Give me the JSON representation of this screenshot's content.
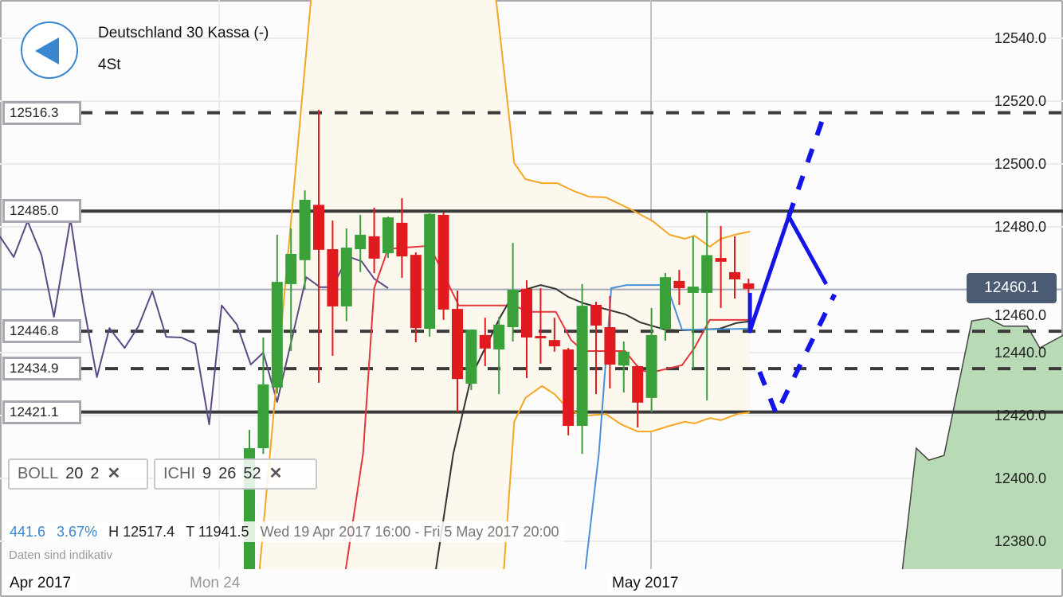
{
  "header": {
    "title": "Deutschland 30 Kassa (-)",
    "timeframe": "4St",
    "back_icon": "back-arrow-icon"
  },
  "levels": [
    {
      "label": "12516.3",
      "price": 12516.3,
      "style": "dashed"
    },
    {
      "label": "12485.0",
      "price": 12485.0,
      "style": "solid"
    },
    {
      "label": "12446.8",
      "price": 12446.8,
      "style": "dashed"
    },
    {
      "label": "12434.9",
      "price": 12434.9,
      "style": "dashed"
    },
    {
      "label": "12421.1",
      "price": 12421.1,
      "style": "solid"
    }
  ],
  "price_axis": {
    "labels": [
      "12540.0",
      "12520.0",
      "12500.0",
      "12480.0",
      "12460.0",
      "12440.0",
      "12420.0",
      "12400.0",
      "12380.0"
    ],
    "current": "12460.1"
  },
  "indicators": [
    {
      "name": "BOLL",
      "params": [
        "20",
        "2"
      ]
    },
    {
      "name": "ICHI",
      "params": [
        "9",
        "26",
        "52"
      ]
    }
  ],
  "info": {
    "change": "441.6",
    "change_pct": "3.67%",
    "high": "H 12517.4",
    "low": "T 11941.5",
    "range": "Wed 19 Apr 2017 16:00 - Fri 5 May 2017 20:00",
    "note": "Daten sind indikativ"
  },
  "x_axis": {
    "labels": [
      "Apr 2017",
      "Mon 24",
      "May 2017"
    ]
  },
  "colors": {
    "up": "#3aa03a",
    "down": "#e01a1f",
    "bollinger": "#f5a623",
    "band_fill": "#fdf8ee",
    "tenkan": "#e3363c",
    "kijun": "#333333",
    "blue_line": "#4a90d9",
    "lagging": "#5c4a85",
    "cloud": "#b8dab4",
    "drawing": "#1414e6",
    "accent": "#3a87d0",
    "badge": "#4b5b74"
  },
  "chart_data": {
    "type": "candlestick",
    "ylim": [
      12362,
      12552
    ],
    "candles_ohlc": [
      [
        12362,
        12415.4,
        12362,
        12409.6
      ],
      [
        12409.6,
        12444.8,
        12407.8,
        12429.9
      ],
      [
        12428.9,
        12477.5,
        12427,
        12462.5
      ],
      [
        12461.8,
        12479.5,
        12440.5,
        12471.4
      ],
      [
        12469.4,
        12491.6,
        12460,
        12488.6
      ],
      [
        12487,
        12517.2,
        12430.4,
        12472.7
      ],
      [
        12472.9,
        12482,
        12439,
        12454.7
      ],
      [
        12454.7,
        12479.5,
        12450,
        12473.4
      ],
      [
        12472.9,
        12483.8,
        12465.6,
        12477.5
      ],
      [
        12477,
        12486.1,
        12465.3,
        12469.9
      ],
      [
        12471.6,
        12483.3,
        12470.1,
        12483
      ],
      [
        12481.3,
        12489.1,
        12463.8,
        12470.6
      ],
      [
        12471.1,
        12471.9,
        12443.3,
        12447.8
      ],
      [
        12447.6,
        12484.3,
        12445.1,
        12484.1
      ],
      [
        12483.8,
        12484.6,
        12450.4,
        12453.7
      ],
      [
        12453.9,
        12459.7,
        12421,
        12431.6
      ],
      [
        12430.1,
        12447.3,
        12428.1,
        12447.3
      ],
      [
        12445.6,
        12451.1,
        12435.7,
        12441.3
      ],
      [
        12441,
        12451.4,
        12426.8,
        12448.9
      ],
      [
        12448.1,
        12474.9,
        12443.5,
        12460
      ],
      [
        12460.3,
        12463,
        12431.9,
        12444.8
      ],
      [
        12445.3,
        12460.5,
        12436.5,
        12444.8
      ],
      [
        12444,
        12451.1,
        12440.3,
        12442
      ],
      [
        12441,
        12441.5,
        12413.7,
        12416.7
      ],
      [
        12416.7,
        12461.8,
        12407.8,
        12454.9
      ],
      [
        12455.2,
        12456.2,
        12426.8,
        12448.6
      ],
      [
        12448.1,
        12458,
        12428.6,
        12436.2
      ],
      [
        12435.9,
        12443.5,
        12427.3,
        12440.3
      ],
      [
        12435.7,
        12436,
        12416.2,
        12424.1
      ],
      [
        12425.6,
        12454.2,
        12421,
        12445.6
      ],
      [
        12447.6,
        12465.3,
        12443.8,
        12464
      ],
      [
        12462.8,
        12466.3,
        12455.2,
        12460.5
      ],
      [
        12459,
        12477,
        12434.9,
        12461
      ],
      [
        12459,
        12485,
        12424.8,
        12471
      ],
      [
        12470.1,
        12480.3,
        12454.2,
        12468.9
      ],
      [
        12465.6,
        12477,
        12457.2,
        12463.3
      ],
      [
        12462,
        12463.5,
        12459,
        12460.3
      ]
    ],
    "bollinger_upper": [
      [
        0.4,
        12355
      ],
      [
        4.6,
        12560
      ],
      [
        17.6,
        12560
      ],
      [
        19.1,
        12500.3
      ],
      [
        19.9,
        12495.2
      ],
      [
        21.1,
        12493.9
      ],
      [
        22.2,
        12493.9
      ],
      [
        23.4,
        12491.4
      ],
      [
        24.5,
        12489.6
      ],
      [
        25.7,
        12489.4
      ],
      [
        27.4,
        12485.8
      ],
      [
        29.1,
        12481.8
      ],
      [
        30.3,
        12477.5
      ],
      [
        31.4,
        12476.2
      ],
      [
        32.1,
        12477.2
      ],
      [
        33.2,
        12473.7
      ],
      [
        34,
        12476.2
      ],
      [
        35.2,
        12477.7
      ],
      [
        36.1,
        12478.5
      ]
    ],
    "bollinger_lower": [
      [
        18.1,
        12355
      ],
      [
        19.1,
        12418
      ],
      [
        19.9,
        12425.6
      ],
      [
        21.1,
        12429.4
      ],
      [
        22,
        12426.8
      ],
      [
        22.8,
        12423
      ],
      [
        23.7,
        12420.5
      ],
      [
        24.5,
        12420
      ],
      [
        25.7,
        12420.5
      ],
      [
        26.8,
        12417.2
      ],
      [
        28,
        12414.9
      ],
      [
        29,
        12414.9
      ],
      [
        30.3,
        12416.7
      ],
      [
        31.4,
        12418
      ],
      [
        32.1,
        12417.5
      ],
      [
        33.2,
        12419.2
      ],
      [
        34,
        12418.5
      ],
      [
        35.2,
        12420.5
      ],
      [
        36.1,
        12421
      ]
    ],
    "tenkan": [
      [
        6.4,
        12355
      ],
      [
        8.2,
        12408
      ],
      [
        9,
        12460.5
      ],
      [
        10,
        12473
      ],
      [
        13,
        12474
      ],
      [
        15.1,
        12455
      ],
      [
        19.1,
        12455
      ],
      [
        20.1,
        12453
      ],
      [
        22.1,
        12453
      ],
      [
        23.2,
        12444
      ],
      [
        24.1,
        12440.5
      ],
      [
        27.1,
        12440.5
      ],
      [
        28.2,
        12434.4
      ],
      [
        29,
        12433.7
      ],
      [
        31.2,
        12436
      ],
      [
        32.1,
        12441.5
      ],
      [
        33.2,
        12450.4
      ],
      [
        36,
        12450.4
      ]
    ],
    "kijun": [
      [
        12.9,
        12355
      ],
      [
        14.7,
        12407.8
      ],
      [
        16,
        12432.4
      ],
      [
        18.1,
        12451.4
      ],
      [
        19.1,
        12459
      ],
      [
        21,
        12461.5
      ],
      [
        22.1,
        12460.3
      ],
      [
        23,
        12457.7
      ],
      [
        24.1,
        12455.7
      ],
      [
        27.1,
        12452.2
      ],
      [
        28.2,
        12449.6
      ],
      [
        30,
        12447.3
      ],
      [
        31.2,
        12447.1
      ],
      [
        33.9,
        12447.6
      ],
      [
        35.1,
        12449.4
      ],
      [
        36,
        12449.9
      ]
    ],
    "blue_line": [
      [
        23.8,
        12355
      ],
      [
        25.2,
        12407.8
      ],
      [
        26.1,
        12460.5
      ],
      [
        27.2,
        12461.5
      ],
      [
        30.1,
        12461.5
      ],
      [
        31.2,
        12447.3
      ],
      [
        36,
        12447.6
      ]
    ],
    "lagging": [
      [
        -18,
        12477
      ],
      [
        -17,
        12470.4
      ],
      [
        -16,
        12481.8
      ],
      [
        -15,
        12471.1
      ],
      [
        -14.1,
        12451.4
      ],
      [
        -12.9,
        12482.5
      ],
      [
        -12,
        12456
      ],
      [
        -11,
        12432.2
      ],
      [
        -10.1,
        12447.8
      ],
      [
        -9,
        12441.5
      ],
      [
        -8,
        12448.4
      ],
      [
        -7,
        12459.5
      ],
      [
        -6,
        12445
      ],
      [
        -4.9,
        12444.8
      ],
      [
        -3.9,
        12442.8
      ],
      [
        -2.9,
        12417.2
      ],
      [
        -2,
        12455
      ],
      [
        -0.9,
        12448.9
      ],
      [
        0.1,
        12436.2
      ],
      [
        1,
        12440
      ],
      [
        2,
        12424.3
      ],
      [
        4.1,
        12464
      ],
      [
        5.1,
        12460.8
      ],
      [
        6,
        12460.8
      ],
      [
        7.1,
        12470.6
      ],
      [
        8.1,
        12469
      ],
      [
        9,
        12463.5
      ],
      [
        10,
        12460.5
      ]
    ],
    "cloud": [
      [
        47.1,
        12355
      ],
      [
        47.1,
        12371.1
      ],
      [
        48.1,
        12409.6
      ],
      [
        49,
        12405.8
      ],
      [
        50.1,
        12407.3
      ],
      [
        52.1,
        12450.1
      ],
      [
        53.3,
        12450.9
      ],
      [
        54.4,
        12448.4
      ],
      [
        56.1,
        12448.4
      ],
      [
        57,
        12441.5
      ],
      [
        58.8,
        12445.8
      ],
      [
        58.8,
        12355
      ]
    ],
    "drawings": {
      "solid": [
        [
          36.1,
          12459
        ],
        [
          36.1,
          12446.8
        ],
        [
          38.9,
          12483.3
        ],
        [
          41.6,
          12461.8
        ]
      ],
      "dashed_up": [
        [
          38.9,
          12483.3
        ],
        [
          41.3,
          12513.7
        ]
      ],
      "dashed_down": [
        [
          36.8,
          12433.9
        ],
        [
          38,
          12420.5
        ],
        [
          42.2,
          12458.5
        ]
      ]
    }
  }
}
